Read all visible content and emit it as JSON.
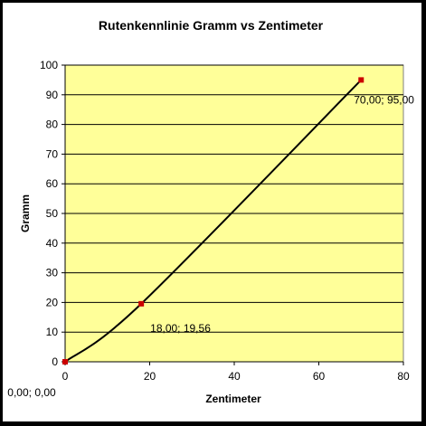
{
  "chart_data": {
    "type": "line",
    "title": "Rutenkennlinie Gramm vs Zentimeter",
    "xlabel": "Zentimeter",
    "ylabel": "Gramm",
    "xlim": [
      0,
      80
    ],
    "ylim": [
      0,
      100
    ],
    "x_ticks": [
      0,
      20,
      40,
      60,
      80
    ],
    "y_ticks": [
      0,
      10,
      20,
      30,
      40,
      50,
      60,
      70,
      80,
      90,
      100
    ],
    "grid": "horizontal",
    "legend": "none",
    "plot_background": "#FFFF99",
    "line_color": "#000000",
    "marker_color": "#CC0000",
    "series": [
      {
        "points": [
          {
            "x": 0,
            "y": 0,
            "label": "0,00; 0,00"
          },
          {
            "x": 18,
            "y": 19.56,
            "label": "18,00; 19,56"
          },
          {
            "x": 70,
            "y": 95,
            "label": "70,00; 95,00"
          }
        ]
      }
    ]
  }
}
